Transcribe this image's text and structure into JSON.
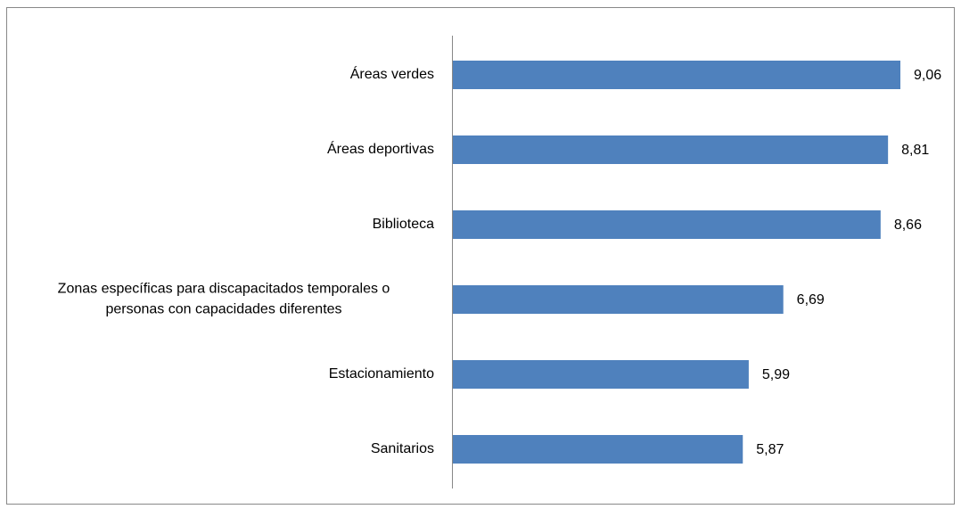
{
  "chart_data": {
    "type": "bar",
    "orientation": "horizontal",
    "categories": [
      "Áreas verdes",
      "Áreas deportivas",
      "Biblioteca",
      "Zonas específicas para discapacitados temporales o personas con capacidades diferentes",
      "Estacionamiento",
      "Sanitarios"
    ],
    "values": [
      9.06,
      8.81,
      8.66,
      6.69,
      5.99,
      5.87
    ],
    "value_labels": [
      "9,06",
      "8,81",
      "8,66",
      "6,69",
      "5,99",
      "5,87"
    ],
    "color": "#4f81bd"
  }
}
